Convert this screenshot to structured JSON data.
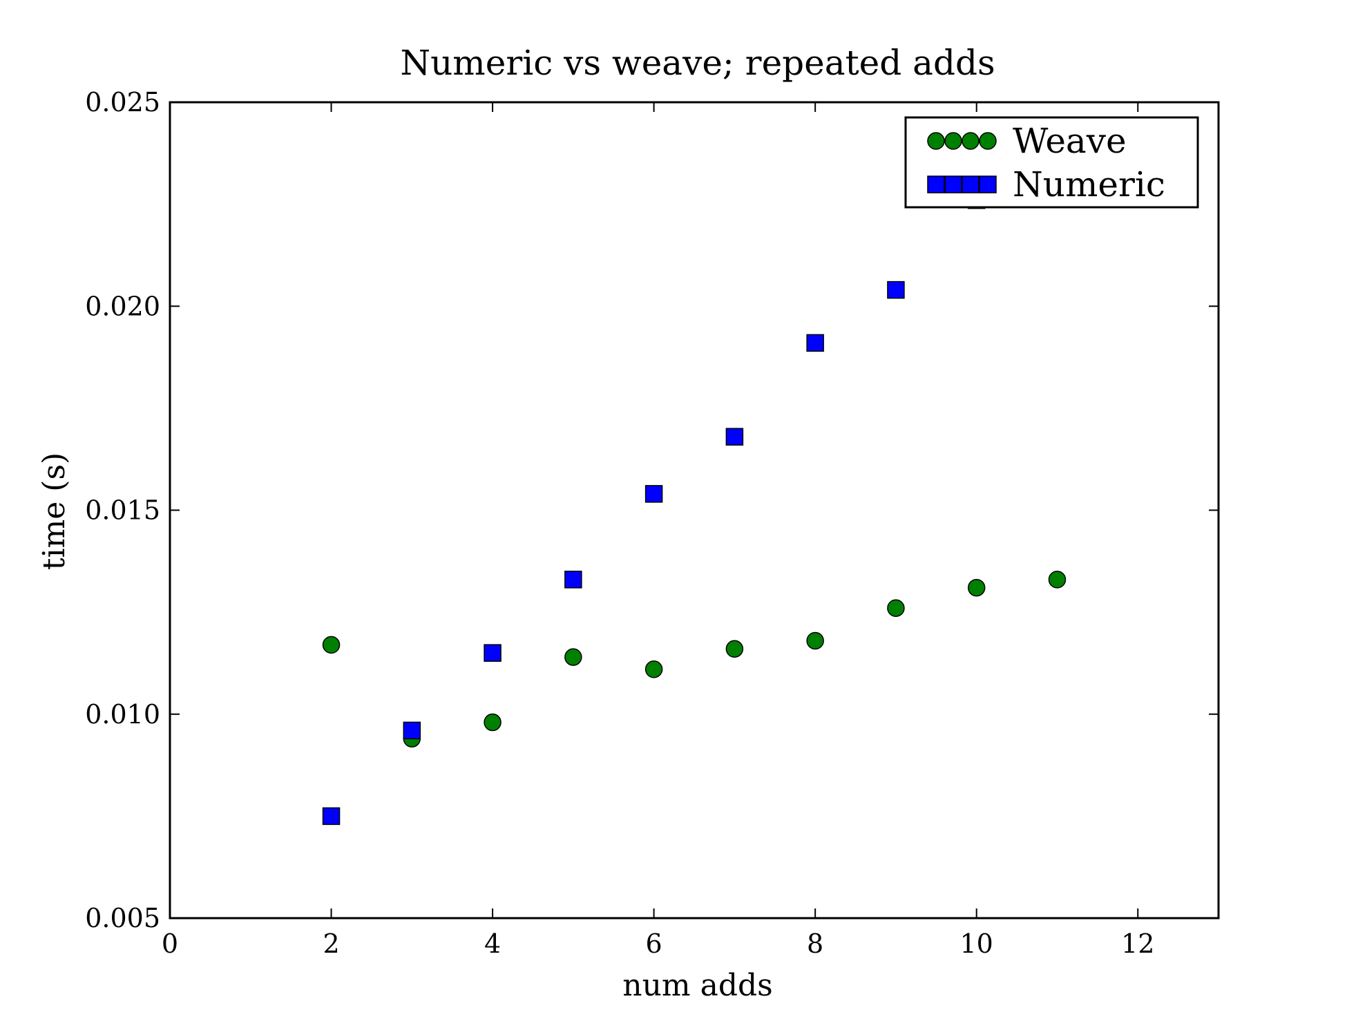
{
  "chart_data": {
    "type": "scatter",
    "title": "Numeric vs weave; repeated adds",
    "xlabel": "num adds",
    "ylabel": "time (s)",
    "xlim": [
      0,
      13
    ],
    "ylim": [
      0.005,
      0.025
    ],
    "xticks": [
      0,
      2,
      4,
      6,
      8,
      10,
      12
    ],
    "xtick_labels": [
      "0",
      "2",
      "4",
      "6",
      "8",
      "10",
      "12"
    ],
    "yticks": [
      0.005,
      0.01,
      0.015,
      0.02,
      0.025
    ],
    "ytick_labels": [
      "0.005",
      "0.010",
      "0.015",
      "0.020",
      "0.025"
    ],
    "grid": false,
    "legend_position": "top-right",
    "series": [
      {
        "name": "Weave",
        "marker": "circle",
        "color": "#008000",
        "x": [
          2,
          3,
          4,
          5,
          6,
          7,
          8,
          9,
          10,
          11
        ],
        "y": [
          0.0117,
          0.0094,
          0.0098,
          0.0114,
          0.0111,
          0.0116,
          0.0118,
          0.0126,
          0.0131,
          0.0133
        ]
      },
      {
        "name": "Numeric",
        "marker": "square",
        "color": "#0000ff",
        "x": [
          2,
          3,
          4,
          5,
          6,
          7,
          8,
          9,
          10
        ],
        "y": [
          0.0075,
          0.0096,
          0.0115,
          0.0133,
          0.0154,
          0.0168,
          0.0191,
          0.0204,
          0.0226
        ]
      }
    ]
  }
}
